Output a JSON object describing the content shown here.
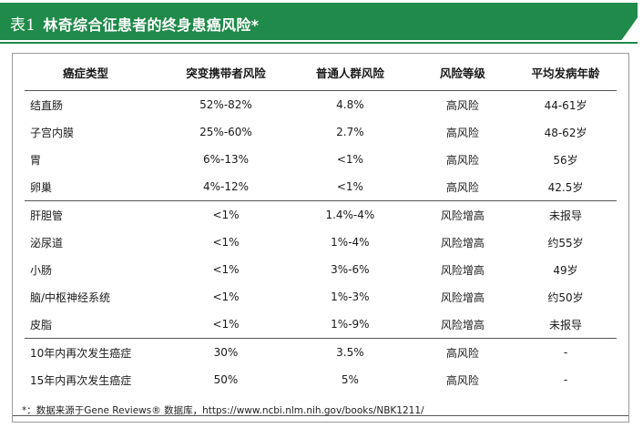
{
  "title": {
    "label": "表1",
    "text": "林奇综合征患者的终身患癌风险*"
  },
  "table": {
    "headers": [
      "癌症类型",
      "突变携带者风险",
      "普通人群风险",
      "风险等级",
      "平均发病年龄"
    ],
    "groups": [
      [
        [
          "结直肠",
          "52%-82%",
          "4.8%",
          "高风险",
          "44-61岁"
        ],
        [
          "子宫内膜",
          "25%-60%",
          "2.7%",
          "高风险",
          "48-62岁"
        ],
        [
          "胃",
          "6%-13%",
          "<1%",
          "高风险",
          "56岁"
        ],
        [
          "卵巢",
          "4%-12%",
          "<1%",
          "高风险",
          "42.5岁"
        ]
      ],
      [
        [
          "肝胆管",
          "<1%",
          "1.4%-4%",
          "风险增高",
          "未报导"
        ],
        [
          "泌尿道",
          "<1%",
          "1%-4%",
          "风险增高",
          "约55岁"
        ],
        [
          "小肠",
          "<1%",
          "3%-6%",
          "风险增高",
          "49岁"
        ],
        [
          "脑/中枢神经系统",
          "<1%",
          "1%-3%",
          "风险增高",
          "约50岁"
        ],
        [
          "皮脂",
          "<1%",
          "1%-9%",
          "风险增高",
          "未报导"
        ]
      ],
      [
        [
          "10年内再次发生癌症",
          "30%",
          "3.5%",
          "高风险",
          "-"
        ],
        [
          "15年内再次发生癌症",
          "50%",
          "5%",
          "高风险",
          "-"
        ]
      ]
    ]
  },
  "footnote": "*：数据来源于Gene Reviews® 数据库，https://www.ncbi.nlm.nih.gov/books/NBK1211/",
  "colors": {
    "accent": "#1f8a49",
    "rule": "#555555",
    "frame": "#9a9a9a"
  }
}
